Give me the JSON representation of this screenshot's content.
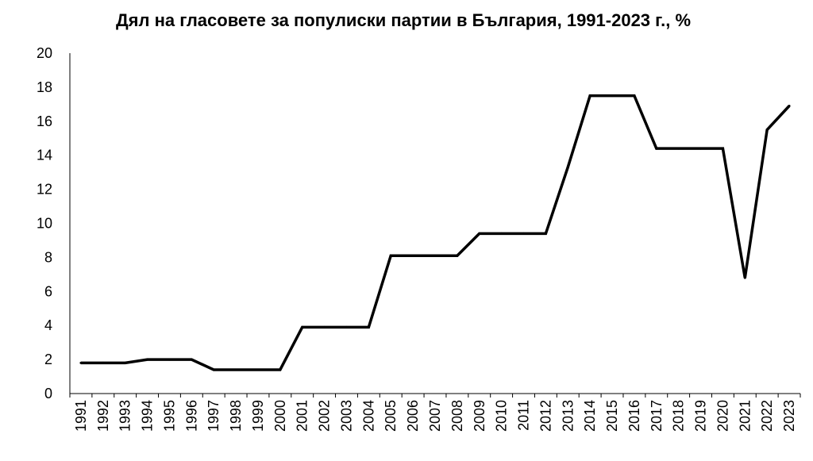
{
  "chart_data": {
    "type": "line",
    "title": "Дял на гласовете за популиски партии в България, 1991-2023 г., %",
    "xlabel": "",
    "ylabel": "",
    "ylim": [
      0,
      20
    ],
    "yticks": [
      "0",
      "2",
      "4",
      "6",
      "8",
      "10",
      "12",
      "14",
      "16",
      "18",
      "20"
    ],
    "grid": false,
    "legend": "none",
    "line_color": "#000000",
    "categories": [
      "1991",
      "1992",
      "1993",
      "1994",
      "1995",
      "1996",
      "1997",
      "1998",
      "1999",
      "2000",
      "2001",
      "2002",
      "2003",
      "2004",
      "2005",
      "2006",
      "2007",
      "2008",
      "2009",
      "2010",
      "2011",
      "2012",
      "2013",
      "2014",
      "2015",
      "2016",
      "2017",
      "2018",
      "2019",
      "2020",
      "2021",
      "2022",
      "2023"
    ],
    "series": [
      {
        "values": [
          1.8,
          1.8,
          1.8,
          2.0,
          2.0,
          2.0,
          1.4,
          1.4,
          1.4,
          1.4,
          3.9,
          3.9,
          3.9,
          3.9,
          8.1,
          8.1,
          8.1,
          8.1,
          9.4,
          9.4,
          9.4,
          9.4,
          13.3,
          17.5,
          17.5,
          17.5,
          14.4,
          14.4,
          14.4,
          14.4,
          6.8,
          15.5,
          16.9
        ]
      }
    ]
  }
}
